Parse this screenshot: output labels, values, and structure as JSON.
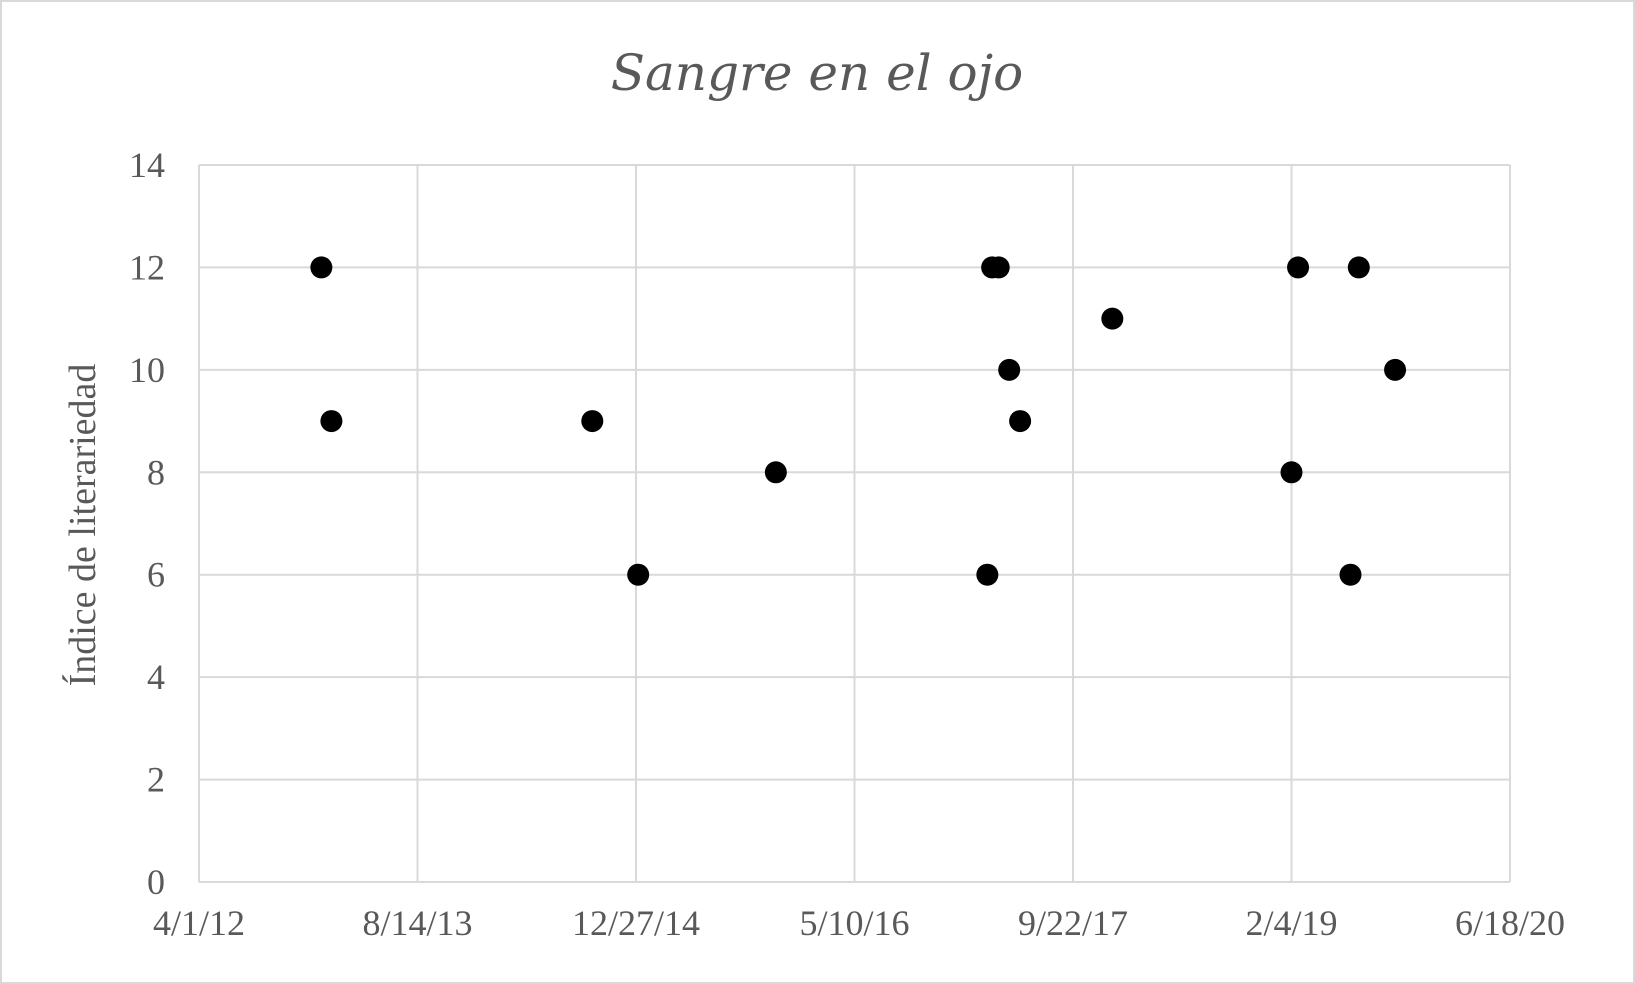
{
  "chart_data": {
    "type": "scatter",
    "title": "Sangre en el ojo",
    "xlabel": "",
    "ylabel": "Índice de literariedad",
    "xlim": [
      "2012-04-01",
      "2020-06-18"
    ],
    "ylim": [
      0,
      14
    ],
    "x_ticks": [
      "2012-04-01",
      "2013-08-14",
      "2014-12-27",
      "2016-05-10",
      "2017-09-22",
      "2019-02-04",
      "2020-06-18"
    ],
    "x_tick_labels": [
      "4/1/12",
      "8/14/13",
      "12/27/14",
      "5/10/16",
      "9/22/17",
      "2/4/19",
      "6/18/20"
    ],
    "y_ticks": [
      0,
      2,
      4,
      6,
      8,
      10,
      12,
      14
    ],
    "y_tick_labels": [
      "0",
      "2",
      "4",
      "6",
      "8",
      "10",
      "12",
      "14"
    ],
    "grid": true,
    "marker_color": "#000000",
    "series": [
      {
        "points": [
          {
            "x": "2013-01-06",
            "y": 12
          },
          {
            "x": "2013-01-29",
            "y": 9
          },
          {
            "x": "2014-09-18",
            "y": 9
          },
          {
            "x": "2015-01-01",
            "y": 6
          },
          {
            "x": "2015-11-12",
            "y": 8
          },
          {
            "x": "2017-03-10",
            "y": 6
          },
          {
            "x": "2017-03-21",
            "y": 12
          },
          {
            "x": "2017-04-05",
            "y": 12
          },
          {
            "x": "2017-04-29",
            "y": 10
          },
          {
            "x": "2017-05-24",
            "y": 9
          },
          {
            "x": "2017-12-21",
            "y": 11
          },
          {
            "x": "2019-02-04",
            "y": 8
          },
          {
            "x": "2019-02-19",
            "y": 12
          },
          {
            "x": "2019-06-19",
            "y": 6
          },
          {
            "x": "2019-07-08",
            "y": 12
          },
          {
            "x": "2019-09-29",
            "y": 10
          }
        ]
      }
    ]
  }
}
